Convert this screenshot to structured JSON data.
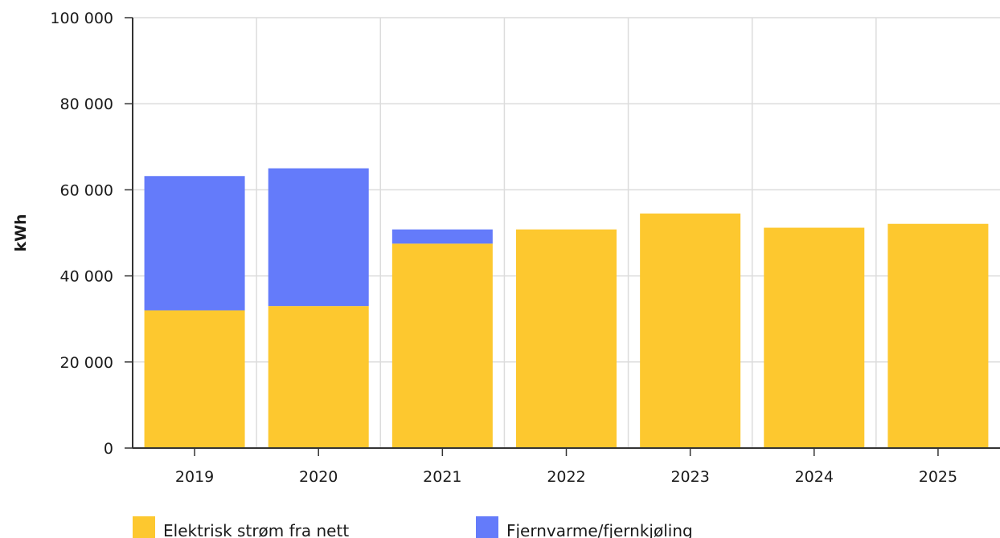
{
  "chart_data": {
    "type": "bar",
    "stacked": true,
    "title": "",
    "xlabel": "",
    "ylabel": "kWh",
    "ylim": [
      0,
      100000
    ],
    "yticks": [
      0,
      20000,
      40000,
      60000,
      80000,
      100000
    ],
    "ytick_labels": [
      "0",
      "20 000",
      "40 000",
      "60 000",
      "80 000",
      "100 000"
    ],
    "grid": true,
    "legend_position": "bottom",
    "categories": [
      "2019",
      "2020",
      "2021",
      "2022",
      "2023",
      "2024",
      "2025"
    ],
    "series": [
      {
        "name": "Elektrisk strøm fra nett",
        "color": "#FDC82F",
        "values": [
          32000,
          33000,
          47500,
          50800,
          54500,
          51200,
          52100
        ]
      },
      {
        "name": "Fjernvarme/fjernkjøling",
        "color": "#647BFA",
        "values": [
          31200,
          32000,
          3300,
          0,
          0,
          0,
          0
        ]
      }
    ]
  }
}
